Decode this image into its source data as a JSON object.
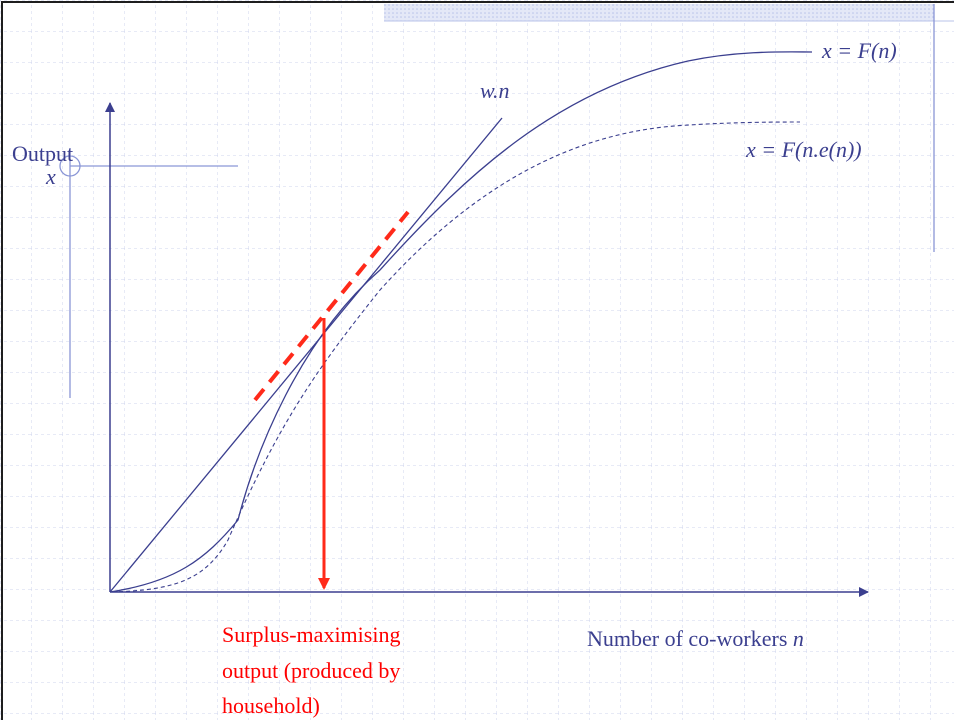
{
  "diagram": {
    "y_axis_label": "Output",
    "y_axis_symbol": "x",
    "x_axis_label": "Number of co-workers",
    "x_axis_symbol": "n",
    "wage_line_label": "w.n",
    "curve_f_label": "x = F(n)",
    "curve_fe_label": "x = F(n.e(n))",
    "annotation": {
      "line1": "Surplus-maximising",
      "line2": "output (produced by",
      "line3": "household)"
    },
    "colors": {
      "curve": "#3b3f8f",
      "tangent": "#ff2a1a",
      "grid": "#cfd4ee",
      "band": "#b9c3ea",
      "accent_line": "#8a96d6",
      "annotation_text": "#ff0000"
    }
  }
}
